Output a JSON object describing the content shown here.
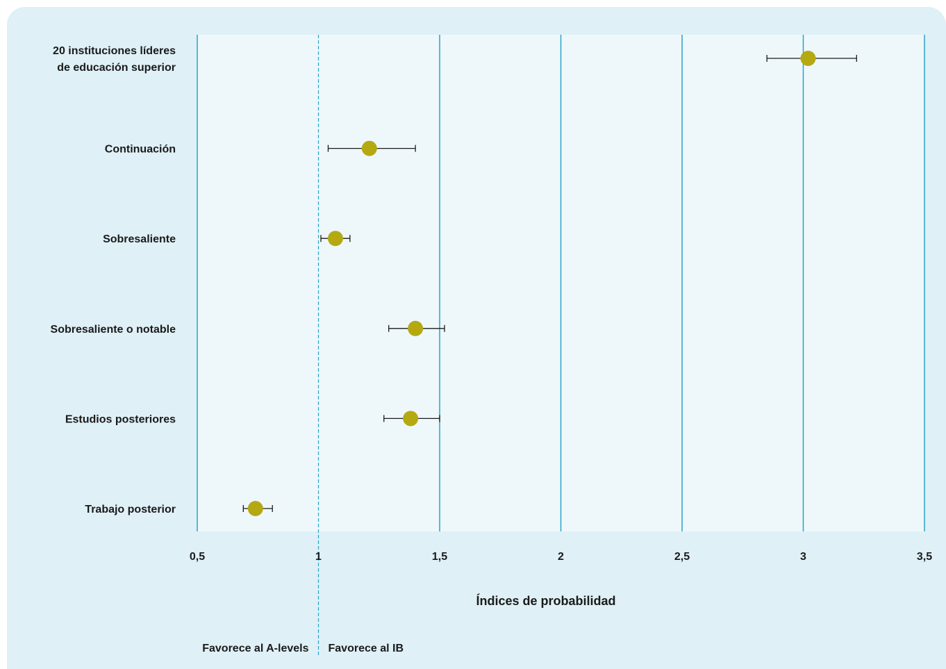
{
  "chart_data": {
    "type": "scatter",
    "title": "",
    "xlabel": "Índices de probabilidad",
    "xlim": [
      0.5,
      3.5
    ],
    "x_ticks": [
      "0,5",
      "1",
      "1,5",
      "2",
      "2,5",
      "3",
      "3,5"
    ],
    "x_tick_values": [
      0.5,
      1,
      1.5,
      2,
      2.5,
      3,
      3.5
    ],
    "reference_line": 1,
    "reference_labels": {
      "left": "Favorece al A-levels",
      "right": "Favorece al IB"
    },
    "colors": {
      "marker": "#b5a912",
      "gridline": "#29a3c6",
      "plot_bg": "#eef8fb",
      "panel_bg": "#dff0f7",
      "reference": "#29a3c6"
    },
    "categories": [
      {
        "label_lines": [
          "20 instituciones líderes",
          "de educación superior"
        ],
        "value": 3.02,
        "ci_low": 2.85,
        "ci_high": 3.22
      },
      {
        "label_lines": [
          "Continuación"
        ],
        "value": 1.21,
        "ci_low": 1.04,
        "ci_high": 1.4
      },
      {
        "label_lines": [
          "Sobresaliente"
        ],
        "value": 1.07,
        "ci_low": 1.01,
        "ci_high": 1.13
      },
      {
        "label_lines": [
          "Sobresaliente o notable"
        ],
        "value": 1.4,
        "ci_low": 1.29,
        "ci_high": 1.52
      },
      {
        "label_lines": [
          "Estudios posteriores"
        ],
        "value": 1.38,
        "ci_low": 1.27,
        "ci_high": 1.5
      },
      {
        "label_lines": [
          "Trabajo posterior"
        ],
        "value": 0.74,
        "ci_low": 0.69,
        "ci_high": 0.81
      }
    ]
  }
}
